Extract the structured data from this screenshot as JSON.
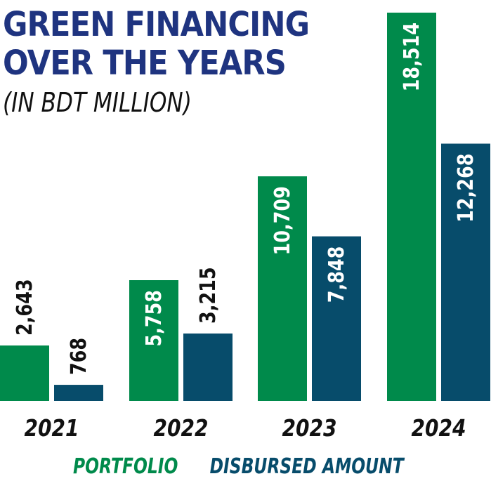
{
  "chart_data": {
    "type": "bar",
    "title": "GREEN FINANCING OVER THE YEARS",
    "title_lines": [
      "GREEN FINANCING",
      "OVER THE YEARS"
    ],
    "subtitle": "(IN BDT MILLION)",
    "categories": [
      "2021",
      "2022",
      "2023",
      "2024"
    ],
    "series": [
      {
        "name": "PORTFOLIO",
        "color": "#008a4b",
        "values": [
          2643,
          5758,
          10709,
          18514
        ],
        "labels": [
          "2,643",
          "5,758",
          "10,709",
          "18,514"
        ]
      },
      {
        "name": "DISBURSED AMOUNT",
        "color": "#074c6b",
        "values": [
          768,
          3215,
          7848,
          12268
        ],
        "labels": [
          "768",
          "3,215",
          "7,848",
          "12,268"
        ]
      }
    ],
    "ylim": [
      0,
      18514
    ],
    "xlabel": "",
    "ylabel": "",
    "grid": false,
    "legend_position": "bottom"
  }
}
